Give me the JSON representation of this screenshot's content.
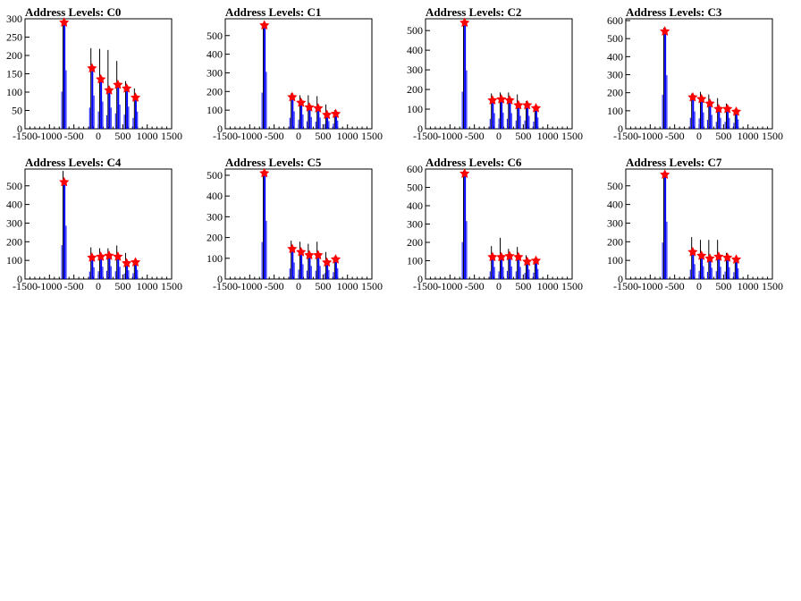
{
  "figure": {
    "panel_titles": [
      "Address Levels: C0",
      "Address Levels: C1",
      "Address Levels: C2",
      "Address Levels: C3",
      "Address Levels: C4",
      "Address Levels: C5",
      "Address Levels: C6",
      "Address Levels: C7"
    ],
    "colors": {
      "histogram": "#0000ff",
      "spike": "#000000",
      "marker": "#ff0000",
      "axis": "#000000"
    }
  },
  "chart_data": [
    {
      "type": "bar",
      "title": "Address Levels: C0",
      "xlabel": "",
      "ylabel": "",
      "xlim": [
        -1500,
        1500
      ],
      "ylim": [
        0,
        300
      ],
      "xticks": [
        -1500,
        -1000,
        -500,
        0,
        500,
        1000,
        1500
      ],
      "xtick_labels": [
        "-1500",
        "-1000",
        "-500",
        "0",
        "500",
        "1000",
        "1500"
      ],
      "yticks": [
        0,
        50,
        100,
        150,
        200,
        250,
        300
      ],
      "ytick_labels": [
        "0",
        "50",
        "100",
        "150",
        "200",
        "250",
        "300"
      ],
      "peaks": [
        {
          "x": -700,
          "y": 290,
          "height": 290
        },
        {
          "x": -130,
          "y": 165,
          "height": 220
        },
        {
          "x": 50,
          "y": 135,
          "height": 218
        },
        {
          "x": 220,
          "y": 105,
          "height": 215
        },
        {
          "x": 400,
          "y": 120,
          "height": 185
        },
        {
          "x": 580,
          "y": 110,
          "height": 130
        },
        {
          "x": 760,
          "y": 85,
          "height": 110
        }
      ]
    },
    {
      "type": "bar",
      "title": "Address Levels: C1",
      "xlabel": "",
      "ylabel": "",
      "xlim": [
        -1500,
        1500
      ],
      "ylim": [
        0,
        590
      ],
      "xticks": [
        -1500,
        -1000,
        -500,
        0,
        500,
        1000,
        1500
      ],
      "xtick_labels": [
        "-1500",
        "-1000",
        "-500",
        "0",
        "500",
        "1000",
        "1500"
      ],
      "yticks": [
        0,
        100,
        200,
        300,
        400,
        500
      ],
      "ytick_labels": [
        "0",
        "100",
        "200",
        "300",
        "400",
        "500"
      ],
      "peaks": [
        {
          "x": -700,
          "y": 555,
          "height": 560
        },
        {
          "x": -130,
          "y": 170,
          "height": 190
        },
        {
          "x": 50,
          "y": 140,
          "height": 180
        },
        {
          "x": 220,
          "y": 115,
          "height": 180
        },
        {
          "x": 400,
          "y": 110,
          "height": 175
        },
        {
          "x": 580,
          "y": 75,
          "height": 130
        },
        {
          "x": 760,
          "y": 80,
          "height": 100
        }
      ]
    },
    {
      "type": "bar",
      "title": "Address Levels: C2",
      "xlabel": "",
      "ylabel": "",
      "xlim": [
        -1500,
        1500
      ],
      "ylim": [
        0,
        560
      ],
      "xticks": [
        -1500,
        -1000,
        -500,
        0,
        500,
        1000,
        1500
      ],
      "xtick_labels": [
        "-1500",
        "-1000",
        "-500",
        "0",
        "500",
        "1000",
        "1500"
      ],
      "yticks": [
        0,
        100,
        200,
        300,
        400,
        500
      ],
      "ytick_labels": [
        "0",
        "100",
        "200",
        "300",
        "400",
        "500"
      ],
      "peaks": [
        {
          "x": -700,
          "y": 540,
          "height": 545
        },
        {
          "x": -130,
          "y": 145,
          "height": 180
        },
        {
          "x": 50,
          "y": 150,
          "height": 185
        },
        {
          "x": 220,
          "y": 145,
          "height": 185
        },
        {
          "x": 400,
          "y": 120,
          "height": 175
        },
        {
          "x": 580,
          "y": 120,
          "height": 140
        },
        {
          "x": 760,
          "y": 105,
          "height": 110
        }
      ]
    },
    {
      "type": "bar",
      "title": "Address Levels: C3",
      "xlabel": "",
      "ylabel": "",
      "xlim": [
        -1500,
        1500
      ],
      "ylim": [
        0,
        610
      ],
      "xticks": [
        -1500,
        -1000,
        -500,
        0,
        500,
        1000,
        1500
      ],
      "xtick_labels": [
        "-1500",
        "-1000",
        "-500",
        "0",
        "500",
        "1000",
        "1500"
      ],
      "yticks": [
        0,
        100,
        200,
        300,
        400,
        500,
        600
      ],
      "ytick_labels": [
        "0",
        "100",
        "200",
        "300",
        "400",
        "500",
        "600"
      ],
      "peaks": [
        {
          "x": -700,
          "y": 540,
          "height": 560
        },
        {
          "x": -130,
          "y": 175,
          "height": 195
        },
        {
          "x": 50,
          "y": 165,
          "height": 205
        },
        {
          "x": 220,
          "y": 140,
          "height": 190
        },
        {
          "x": 400,
          "y": 110,
          "height": 170
        },
        {
          "x": 580,
          "y": 110,
          "height": 140
        },
        {
          "x": 760,
          "y": 95,
          "height": 110
        }
      ]
    },
    {
      "type": "bar",
      "title": "Address Levels: C4",
      "xlabel": "",
      "ylabel": "",
      "xlim": [
        -1500,
        1500
      ],
      "ylim": [
        0,
        590
      ],
      "xticks": [
        -1500,
        -1000,
        -500,
        0,
        500,
        1000,
        1500
      ],
      "xtick_labels": [
        "-1500",
        "-1000",
        "-500",
        "0",
        "500",
        "1000",
        "1500"
      ],
      "yticks": [
        0,
        100,
        200,
        300,
        400,
        500
      ],
      "ytick_labels": [
        "0",
        "100",
        "200",
        "300",
        "400",
        "500"
      ],
      "peaks": [
        {
          "x": -700,
          "y": 520,
          "height": 580
        },
        {
          "x": -130,
          "y": 115,
          "height": 170
        },
        {
          "x": 50,
          "y": 120,
          "height": 165
        },
        {
          "x": 220,
          "y": 125,
          "height": 165
        },
        {
          "x": 400,
          "y": 120,
          "height": 180
        },
        {
          "x": 580,
          "y": 85,
          "height": 140
        },
        {
          "x": 760,
          "y": 90,
          "height": 100
        }
      ]
    },
    {
      "type": "bar",
      "title": "Address Levels: C5",
      "xlabel": "",
      "ylabel": "",
      "xlim": [
        -1500,
        1500
      ],
      "ylim": [
        0,
        530
      ],
      "xticks": [
        -1500,
        -1000,
        -500,
        0,
        500,
        1000,
        1500
      ],
      "xtick_labels": [
        "-1500",
        "-1000",
        "-500",
        "0",
        "500",
        "1000",
        "1500"
      ],
      "yticks": [
        0,
        100,
        200,
        300,
        400,
        500
      ],
      "ytick_labels": [
        "0",
        "100",
        "200",
        "300",
        "400",
        "500"
      ],
      "peaks": [
        {
          "x": -700,
          "y": 510,
          "height": 520
        },
        {
          "x": -130,
          "y": 145,
          "height": 185
        },
        {
          "x": 50,
          "y": 130,
          "height": 180
        },
        {
          "x": 220,
          "y": 115,
          "height": 170
        },
        {
          "x": 400,
          "y": 115,
          "height": 180
        },
        {
          "x": 580,
          "y": 80,
          "height": 130
        },
        {
          "x": 760,
          "y": 95,
          "height": 110
        }
      ]
    },
    {
      "type": "bar",
      "title": "Address Levels: C6",
      "xlabel": "",
      "ylabel": "",
      "xlim": [
        -1500,
        1500
      ],
      "ylim": [
        0,
        600
      ],
      "xticks": [
        -1500,
        -1000,
        -500,
        0,
        500,
        1000,
        1500
      ],
      "xtick_labels": [
        "-1500",
        "-1000",
        "-500",
        "0",
        "500",
        "1000",
        "1500"
      ],
      "yticks": [
        0,
        100,
        200,
        300,
        400,
        500,
        600
      ],
      "ytick_labels": [
        "0",
        "100",
        "200",
        "300",
        "400",
        "500",
        "600"
      ],
      "peaks": [
        {
          "x": -700,
          "y": 575,
          "height": 590
        },
        {
          "x": -130,
          "y": 120,
          "height": 180
        },
        {
          "x": 50,
          "y": 120,
          "height": 225
        },
        {
          "x": 220,
          "y": 125,
          "height": 165
        },
        {
          "x": 400,
          "y": 120,
          "height": 175
        },
        {
          "x": 580,
          "y": 95,
          "height": 130
        },
        {
          "x": 760,
          "y": 100,
          "height": 115
        }
      ]
    },
    {
      "type": "bar",
      "title": "Address Levels: C7",
      "xlabel": "",
      "ylabel": "",
      "xlim": [
        -1500,
        1500
      ],
      "ylim": [
        0,
        590
      ],
      "xticks": [
        -1500,
        -1000,
        -500,
        0,
        500,
        1000,
        1500
      ],
      "xtick_labels": [
        "-1500",
        "-1000",
        "-500",
        "0",
        "500",
        "1000",
        "1500"
      ],
      "yticks": [
        0,
        100,
        200,
        300,
        400,
        500
      ],
      "ytick_labels": [
        "0",
        "100",
        "200",
        "300",
        "400",
        "500"
      ],
      "peaks": [
        {
          "x": -700,
          "y": 560,
          "height": 570
        },
        {
          "x": -130,
          "y": 145,
          "height": 225
        },
        {
          "x": 50,
          "y": 125,
          "height": 210
        },
        {
          "x": 220,
          "y": 110,
          "height": 210
        },
        {
          "x": 400,
          "y": 120,
          "height": 210
        },
        {
          "x": 580,
          "y": 115,
          "height": 140
        },
        {
          "x": 760,
          "y": 105,
          "height": 115
        }
      ]
    }
  ]
}
